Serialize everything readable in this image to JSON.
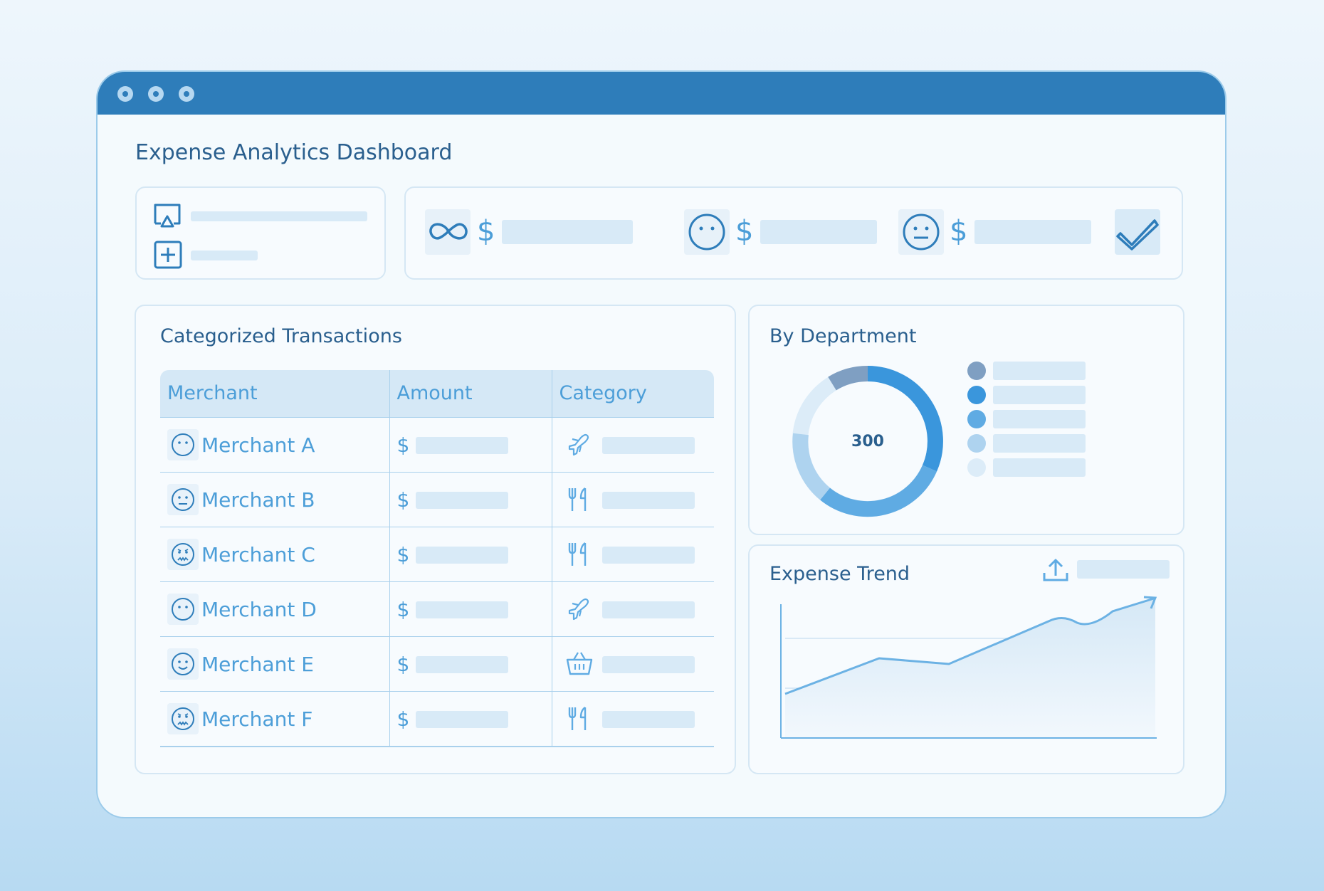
{
  "page": {
    "title": "Expense Analytics Dashboard"
  },
  "colors": {
    "titlebar": "#2e7dba",
    "accent": "#4c9ed8",
    "heading": "#2a5f8e",
    "placeholder": "#d8eaf7"
  },
  "window": {
    "controls": [
      "window-dot-1",
      "window-dot-2",
      "window-dot-3"
    ]
  },
  "actions_card": {
    "items": [
      {
        "icon": "cast-screen-icon"
      },
      {
        "icon": "plus-square-icon"
      }
    ]
  },
  "kpis": {
    "items": [
      {
        "icon": "infinity-icon",
        "currency": "$"
      },
      {
        "icon": "neutral-face-icon",
        "currency": "$"
      },
      {
        "icon": "straight-face-icon",
        "currency": "$"
      }
    ],
    "check_icon": "check-icon"
  },
  "transactions": {
    "title": "Categorized Transactions",
    "columns": [
      "Merchant",
      "Amount",
      "Category"
    ],
    "rows": [
      {
        "merchant": "Merchant A",
        "face": "neutral-face-icon",
        "currency": "$",
        "category_icon": "airplane-icon"
      },
      {
        "merchant": "Merchant B",
        "face": "straight-face-icon",
        "currency": "$",
        "category_icon": "fork-knife-icon"
      },
      {
        "merchant": "Merchant C",
        "face": "worried-face-icon",
        "currency": "$",
        "category_icon": "fork-knife-icon"
      },
      {
        "merchant": "Merchant D",
        "face": "neutral-face-icon",
        "currency": "$",
        "category_icon": "airplane-icon"
      },
      {
        "merchant": "Merchant E",
        "face": "smile-face-icon",
        "currency": "$",
        "category_icon": "basket-icon"
      },
      {
        "merchant": "Merchant F",
        "face": "worried-face-icon",
        "currency": "$",
        "category_icon": "fork-knife-icon"
      }
    ]
  },
  "department": {
    "title": "By Department",
    "total": "300",
    "legend_colors": [
      "#7f9fc2",
      "#3a96dc",
      "#5fabe3",
      "#aed3ef",
      "#dcecf8"
    ]
  },
  "trend": {
    "title": "Expense Trend",
    "export_icon": "upload-icon"
  }
}
